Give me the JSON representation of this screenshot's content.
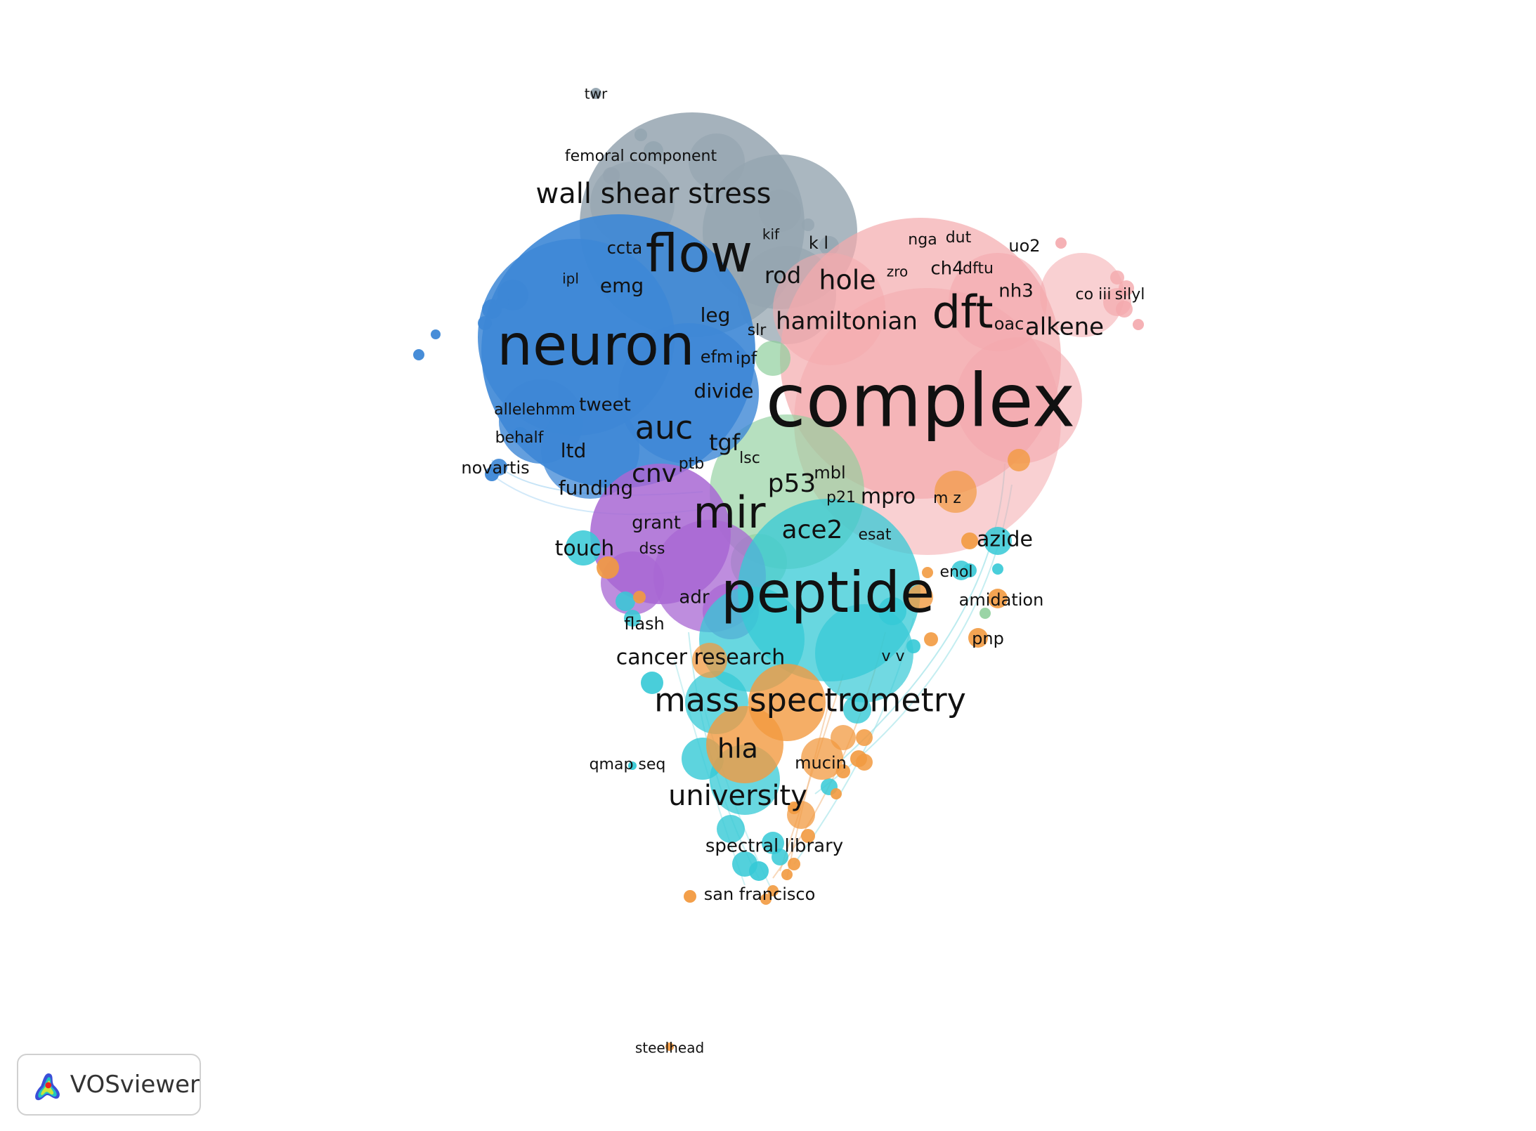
{
  "colors": {
    "gray": "#95a5b0",
    "pink": "#f4a9ad",
    "blue": "#3d87d6",
    "green": "#8fcf9c",
    "cyan": "#35c9d6",
    "purple": "#a867d3",
    "orange": "#f29a40"
  },
  "labels": {
    "twr": "twr",
    "femoral_component": "femoral component",
    "wall_shear_stress": "wall shear stress",
    "flow": "flow",
    "kif": "kif",
    "k_l": "k l",
    "ccta": "ccta",
    "ipl": "ipl",
    "emg": "emg",
    "rod": "rod",
    "leg": "leg",
    "slr": "slr",
    "neuron": "neuron",
    "efm": "efm",
    "ipf": "ipf",
    "divide": "divide",
    "allelehmm": "allelehmm",
    "tweet": "tweet",
    "auc": "auc",
    "behalf": "behalf",
    "tgf": "tgf",
    "ltd": "ltd",
    "lsc": "lsc",
    "novartis": "novartis",
    "cnv": "cnv",
    "ptb": "ptb",
    "funding": "funding",
    "nga": "nga",
    "dut": "dut",
    "uo2": "uo2",
    "zro": "zro",
    "ch4": "ch4",
    "dftu": "dftu",
    "hole": "hole",
    "nh3": "nh3",
    "co_iii": "co iii",
    "silyl": "silyl",
    "dft": "dft",
    "oac": "oac",
    "alkene": "alkene",
    "hamiltonian": "hamiltonian",
    "complex": "complex",
    "mbl": "mbl",
    "p53": "p53",
    "p21": "p21",
    "mpro": "mpro",
    "m_z": "m z",
    "mir": "mir",
    "grant": "grant",
    "ace2": "ace2",
    "esat": "esat",
    "azide": "azide",
    "touch": "touch",
    "dss": "dss",
    "enol": "enol",
    "peptide": "peptide",
    "adr": "adr",
    "amidation": "amidation",
    "flash": "flash",
    "pnp": "pnp",
    "cancer_research": "cancer research",
    "v_v": "v v",
    "mass_spectrometry": "mass spectrometry",
    "hla": "hla",
    "qmap_seq": "qmap seq",
    "mucin": "mucin",
    "university": "university",
    "spectral_library": "spectral library",
    "san_francisco": "san francisco",
    "steelhead": "steelhead"
  },
  "brand": {
    "name": "VOSviewer"
  }
}
